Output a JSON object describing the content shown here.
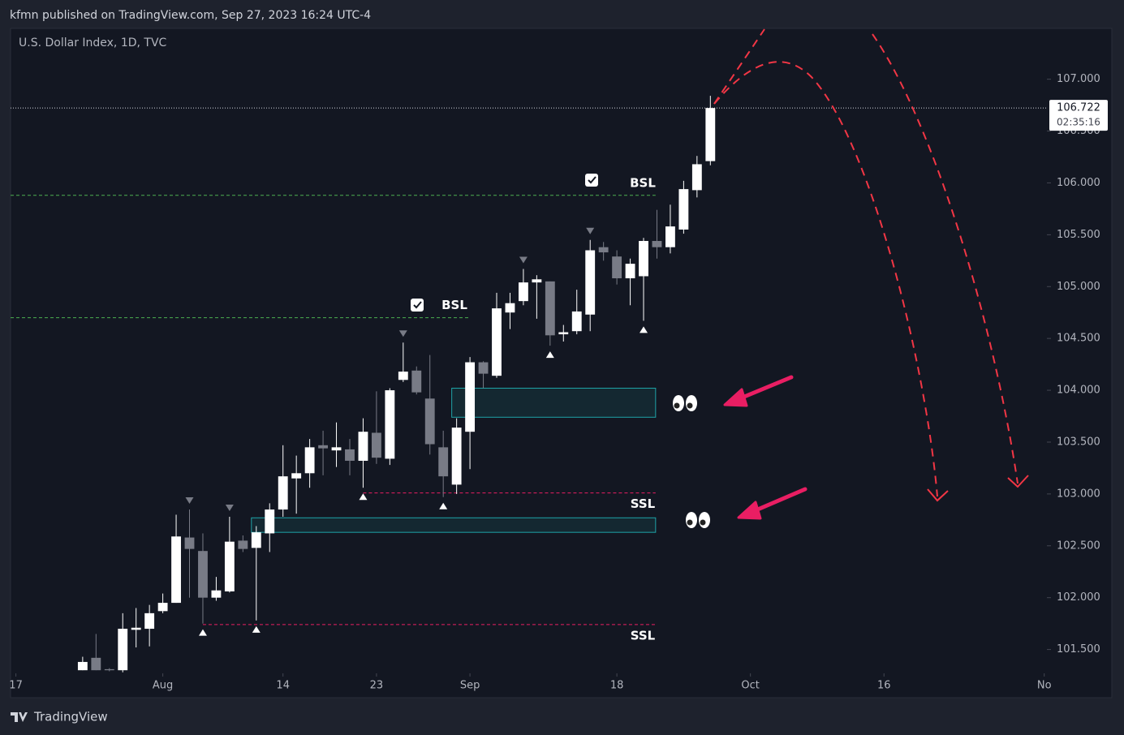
{
  "header": {
    "publisher": "kfmn published on TradingView.com, Sep 27, 2023 16:24 UTC-4",
    "brand": "TradingView"
  },
  "chart_data": {
    "type": "candlestick",
    "title": "U.S. Dollar Index, 1D, TVC",
    "x": [
      5,
      6,
      7,
      8,
      9,
      10,
      11,
      12,
      13,
      14,
      15,
      16,
      17,
      18,
      19,
      20,
      21,
      22,
      23,
      24,
      25,
      26,
      27,
      28,
      29,
      30,
      31,
      32,
      33,
      34,
      35,
      36,
      37,
      38,
      39,
      40,
      41,
      42,
      43,
      44,
      45,
      46,
      47,
      48,
      49,
      50,
      51,
      52
    ],
    "open": [
      101.3,
      101.42,
      101.31,
      101.3,
      101.69,
      101.7,
      101.87,
      101.95,
      102.58,
      102.45,
      102.0,
      102.06,
      102.55,
      102.48,
      102.62,
      102.85,
      103.15,
      103.2,
      103.47,
      103.42,
      103.43,
      103.32,
      103.59,
      103.34,
      104.1,
      104.19,
      103.92,
      103.45,
      103.09,
      103.6,
      104.27,
      104.14,
      104.75,
      104.86,
      105.04,
      105.05,
      104.54,
      104.57,
      104.73,
      105.38,
      105.29,
      105.08,
      105.1,
      105.44,
      105.38,
      105.55,
      105.93,
      106.21
    ],
    "high": [
      101.43,
      101.65,
      101.32,
      101.85,
      101.9,
      101.93,
      102.04,
      102.8,
      102.85,
      102.62,
      102.2,
      102.78,
      102.6,
      102.69,
      102.91,
      103.47,
      103.37,
      103.53,
      103.61,
      103.69,
      103.53,
      103.73,
      103.99,
      104.02,
      104.46,
      104.23,
      104.34,
      103.61,
      103.73,
      104.32,
      104.28,
      104.94,
      104.94,
      105.17,
      105.11,
      105.05,
      104.63,
      104.97,
      105.45,
      105.43,
      105.35,
      105.27,
      105.47,
      105.74,
      105.79,
      106.02,
      106.26,
      106.84
    ],
    "low": [
      101.3,
      101.3,
      101.29,
      101.28,
      101.52,
      101.53,
      101.85,
      101.95,
      102.0,
      101.75,
      101.97,
      102.05,
      102.44,
      101.78,
      102.44,
      102.78,
      102.81,
      103.06,
      103.18,
      103.26,
      103.18,
      103.06,
      103.29,
      103.28,
      104.08,
      103.96,
      103.38,
      102.97,
      103.0,
      103.24,
      104.02,
      104.12,
      104.59,
      104.82,
      104.69,
      104.43,
      104.47,
      104.54,
      104.57,
      105.25,
      105.02,
      104.82,
      104.67,
      105.27,
      105.32,
      105.51,
      105.86,
      106.17
    ],
    "close": [
      101.38,
      101.3,
      101.3,
      101.7,
      101.71,
      101.85,
      101.95,
      102.59,
      102.47,
      102.0,
      102.07,
      102.54,
      102.47,
      102.63,
      102.85,
      103.17,
      103.2,
      103.45,
      103.44,
      103.45,
      103.32,
      103.6,
      103.35,
      104.0,
      104.18,
      103.98,
      103.48,
      103.17,
      103.64,
      104.27,
      104.16,
      104.79,
      104.84,
      105.04,
      105.07,
      104.53,
      104.56,
      104.76,
      105.35,
      105.33,
      105.08,
      105.22,
      105.44,
      105.38,
      105.58,
      105.94,
      106.18,
      106.722
    ],
    "up_color": "#ffffff",
    "down_color": "#787b86",
    "xlim": [
      -0.4,
      77.2
    ],
    "xticks": [
      {
        "value": 0,
        "label": "17"
      },
      {
        "value": 11,
        "label": "Aug"
      },
      {
        "value": 20,
        "label": "14"
      },
      {
        "value": 27,
        "label": "23"
      },
      {
        "value": 34,
        "label": "Sep"
      },
      {
        "value": 45,
        "label": "18"
      },
      {
        "value": 55,
        "label": "Oct"
      },
      {
        "value": 65,
        "label": "16"
      },
      {
        "value": 77,
        "label": "No"
      }
    ],
    "ylim": [
      101.27,
      107.49
    ],
    "yticks": [
      {
        "value": 101.5,
        "label": "101.500"
      },
      {
        "value": 102,
        "label": "102.000"
      },
      {
        "value": 102.5,
        "label": "102.500"
      },
      {
        "value": 103,
        "label": "103.000"
      },
      {
        "value": 103.5,
        "label": "103.500"
      },
      {
        "value": 104,
        "label": "104.000"
      },
      {
        "value": 104.5,
        "label": "104.500"
      },
      {
        "value": 105,
        "label": "105.000"
      },
      {
        "value": 105.5,
        "label": "105.500"
      },
      {
        "value": 106,
        "label": "106.000"
      },
      {
        "value": 106.5,
        "label": "106.500"
      },
      {
        "value": 107,
        "label": "107.000"
      }
    ],
    "last_price": {
      "value": 106.722,
      "label": "106.722"
    },
    "countdown": "02:35:16",
    "levels": [
      {
        "label": "BSL",
        "value": 105.88,
        "color": "#4caf50"
      },
      {
        "label": "BSL",
        "value": 104.7,
        "color": "#4caf50"
      },
      {
        "label": "SSL",
        "value": 103.01,
        "color": "#e91e63"
      },
      {
        "label": "SSL",
        "value": 101.74,
        "color": "#e91e63"
      }
    ],
    "zones": [
      {
        "top": 104.02,
        "bottom": 103.74
      },
      {
        "top": 102.77,
        "bottom": 102.63
      }
    ]
  }
}
